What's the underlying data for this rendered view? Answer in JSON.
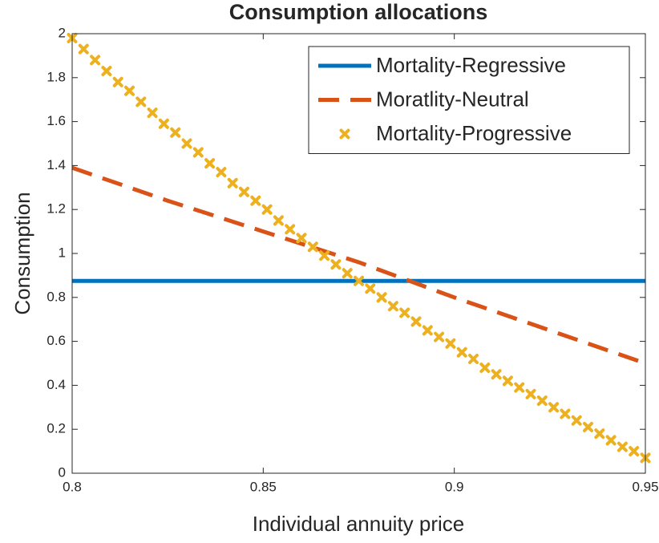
{
  "chart_data": {
    "type": "line",
    "title": "Consumption allocations",
    "x_label": "Individual annuity price",
    "y_label": "Consumption",
    "xlim": [
      0.8,
      0.95
    ],
    "xticks": [
      0.8,
      0.85,
      0.9,
      0.95
    ],
    "ylim": [
      0,
      2
    ],
    "yticks": [
      0,
      0.2,
      0.4,
      0.6,
      0.8,
      1,
      1.2,
      1.4,
      1.6,
      1.8,
      2
    ],
    "legend": "top-right",
    "series": [
      {
        "name": "Mortality-Regressive",
        "color": "#0072BD",
        "style": "solid",
        "x": [
          0.8,
          0.95
        ],
        "values": [
          0.875,
          0.875
        ]
      },
      {
        "name": "Moratlity-Neutral",
        "color": "#D95319",
        "style": "dashed",
        "x": [
          0.8,
          0.825,
          0.85,
          0.875,
          0.9,
          0.925,
          0.95
        ],
        "values": [
          1.39,
          1.24,
          1.1,
          0.96,
          0.8,
          0.65,
          0.5
        ]
      },
      {
        "name": "Mortality-Progressive",
        "color": "#EDB120",
        "style": "markers",
        "x": [
          0.8,
          0.803,
          0.806,
          0.809,
          0.812,
          0.815,
          0.818,
          0.821,
          0.824,
          0.827,
          0.83,
          0.833,
          0.836,
          0.839,
          0.842,
          0.845,
          0.848,
          0.851,
          0.854,
          0.857,
          0.86,
          0.863,
          0.866,
          0.869,
          0.872,
          0.875,
          0.878,
          0.881,
          0.884,
          0.887,
          0.89,
          0.893,
          0.896,
          0.899,
          0.902,
          0.905,
          0.908,
          0.911,
          0.914,
          0.917,
          0.92,
          0.923,
          0.926,
          0.929,
          0.932,
          0.935,
          0.938,
          0.941,
          0.944,
          0.947,
          0.95
        ],
        "values": [
          1.98,
          1.93,
          1.88,
          1.83,
          1.78,
          1.74,
          1.69,
          1.64,
          1.59,
          1.55,
          1.5,
          1.46,
          1.41,
          1.37,
          1.32,
          1.28,
          1.24,
          1.2,
          1.15,
          1.11,
          1.07,
          1.03,
          0.99,
          0.95,
          0.91,
          0.875,
          0.84,
          0.8,
          0.76,
          0.73,
          0.69,
          0.65,
          0.62,
          0.59,
          0.55,
          0.52,
          0.48,
          0.45,
          0.42,
          0.39,
          0.36,
          0.33,
          0.3,
          0.27,
          0.24,
          0.21,
          0.18,
          0.15,
          0.12,
          0.1,
          0.07
        ]
      }
    ]
  }
}
